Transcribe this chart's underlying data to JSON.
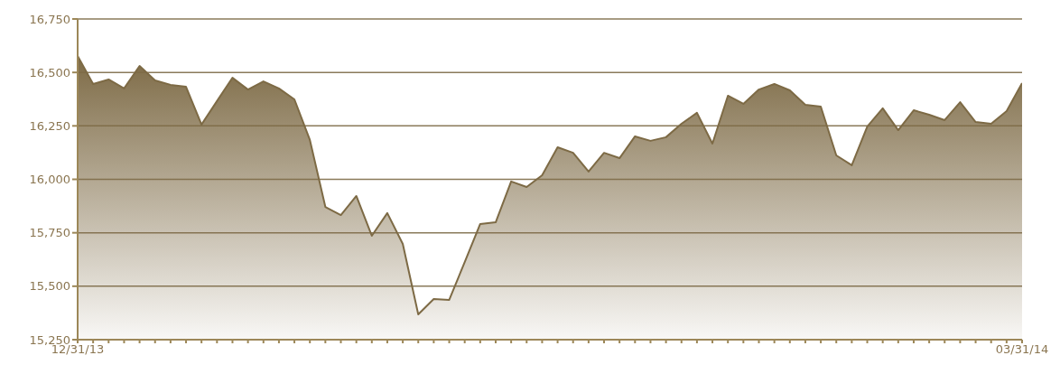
{
  "chart_data": {
    "type": "area",
    "categories": [
      "12/31/13",
      null,
      null,
      null,
      null,
      null,
      null,
      null,
      null,
      null,
      null,
      null,
      null,
      null,
      null,
      null,
      null,
      null,
      null,
      null,
      null,
      null,
      null,
      null,
      null,
      null,
      null,
      null,
      null,
      null,
      null,
      null,
      null,
      null,
      null,
      null,
      null,
      null,
      null,
      null,
      null,
      null,
      null,
      null,
      null,
      null,
      null,
      null,
      null,
      null,
      null,
      null,
      null,
      null,
      null,
      null,
      null,
      null,
      null,
      null,
      null,
      "03/31/14"
    ],
    "values": [
      16577,
      16446,
      16467,
      16425,
      16530,
      16463,
      16442,
      16433,
      16256,
      16366,
      16475,
      16420,
      16458,
      16425,
      16374,
      16184,
      15871,
      15833,
      15922,
      15736,
      15842,
      15698,
      15368,
      15440,
      15436,
      15613,
      15791,
      15799,
      15990,
      15964,
      16019,
      16150,
      16124,
      16036,
      16124,
      16099,
      16201,
      16180,
      16197,
      16260,
      16311,
      16167,
      16391,
      16353,
      16420,
      16446,
      16416,
      16349,
      16340,
      16112,
      16066,
      16247,
      16332,
      16230,
      16323,
      16302,
      16277,
      16361,
      16268,
      16260,
      16319,
      16450
    ],
    "color": "#7d6a45",
    "ylim": [
      15250,
      16750
    ],
    "yticks": [
      {
        "value": 15250,
        "label": "15,250"
      },
      {
        "value": 15500,
        "label": "15,500"
      },
      {
        "value": 15750,
        "label": "15,750"
      },
      {
        "value": 16000,
        "label": "16,000"
      },
      {
        "value": 16250,
        "label": "16,250"
      },
      {
        "value": 16500,
        "label": "16,500"
      },
      {
        "value": 16750,
        "label": "16,750"
      }
    ],
    "grid": "y"
  }
}
